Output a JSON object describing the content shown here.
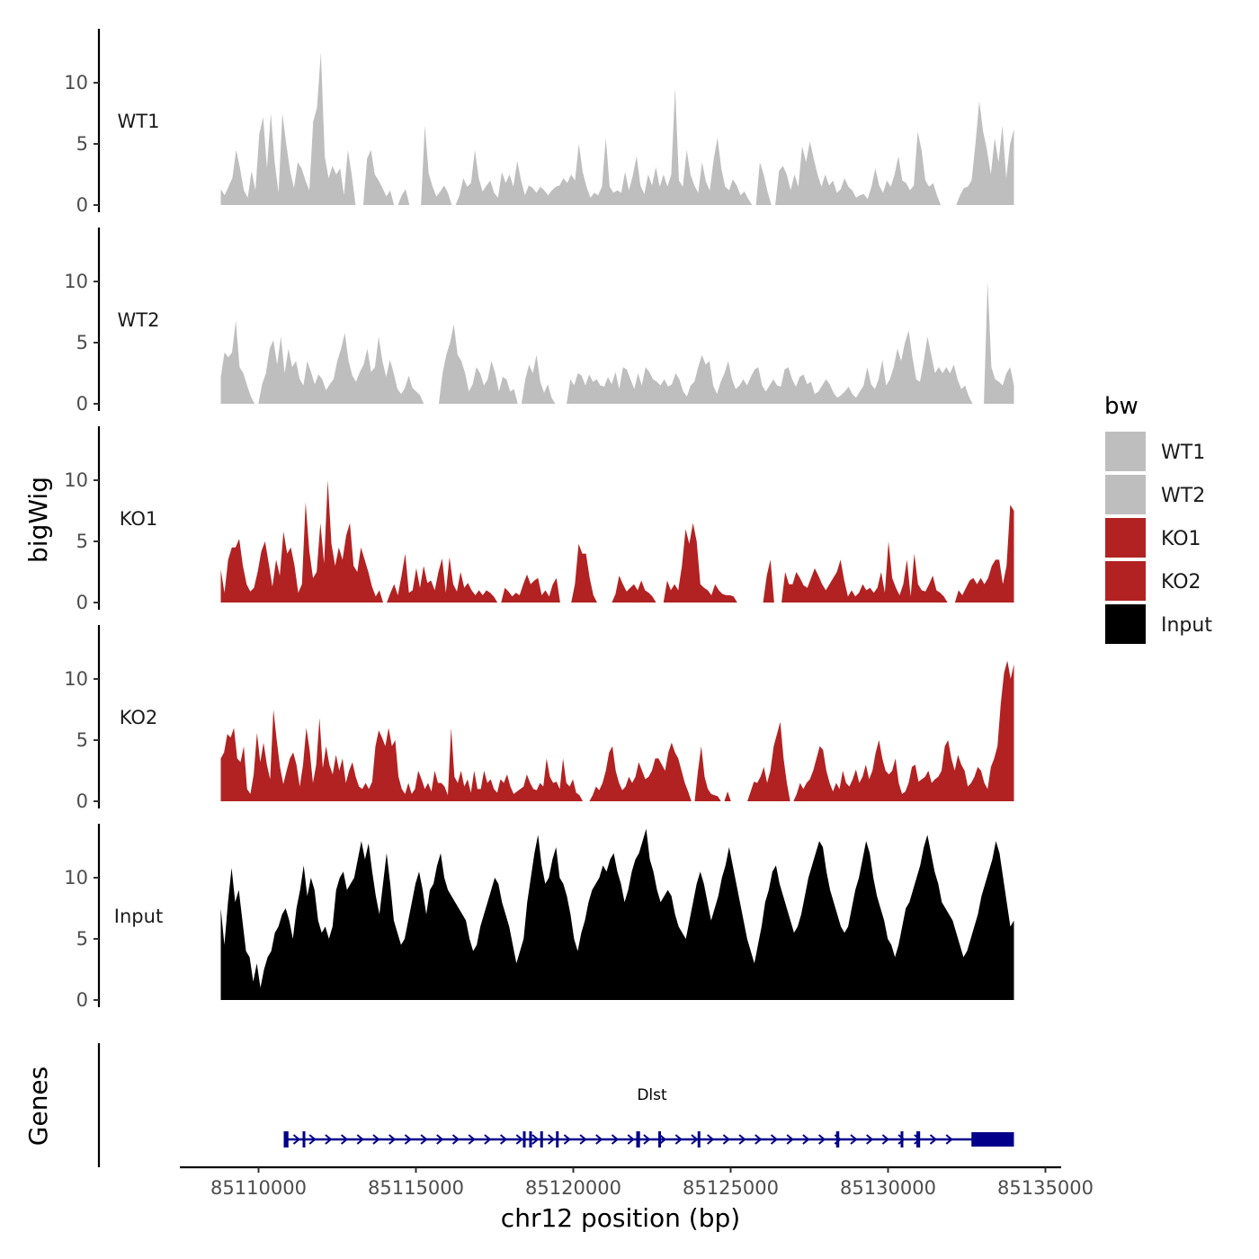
{
  "chart_data": {
    "type": "area",
    "title": "",
    "xlabel": "chr12 position (bp)",
    "ylabel": "bigWig",
    "genes_label": "Genes",
    "xlim": [
      85107500,
      85135500
    ],
    "x_ticks": [
      85110000,
      85115000,
      85120000,
      85125000,
      85130000,
      85135000
    ],
    "x_tick_labels": [
      "85110000",
      "85115000",
      "85120000",
      "85125000",
      "85130000",
      "85135000"
    ],
    "ylim": [
      0,
      14
    ],
    "y_ticks": [
      0,
      5,
      10
    ],
    "y_tick_labels": [
      "0",
      "5",
      "10"
    ],
    "x_start": 85108800,
    "x_end": 85134000,
    "legend": {
      "title": "bw",
      "entries": [
        {
          "label": "WT1",
          "color": "#bebebe"
        },
        {
          "label": "WT2",
          "color": "#bebebe"
        },
        {
          "label": "KO1",
          "color": "#b22222"
        },
        {
          "label": "KO2",
          "color": "#b22222"
        },
        {
          "label": "Input",
          "color": "#000000"
        }
      ]
    },
    "series": [
      {
        "name": "WT1",
        "color": "#bebebe",
        "values": [
          1.3,
          0.8,
          1.5,
          2.2,
          4.5,
          3.0,
          1.2,
          0.6,
          2.8,
          1.2,
          5.8,
          7.2,
          3.0,
          7.5,
          3.5,
          1.0,
          7.5,
          5.0,
          2.8,
          1.4,
          3.5,
          3.0,
          2.0,
          1.2,
          6.8,
          8.0,
          12.5,
          4.0,
          2.2,
          3.2,
          2.5,
          3.0,
          0.8,
          4.5,
          2.5,
          0,
          0,
          0,
          3.8,
          4.5,
          2.5,
          2.0,
          1.4,
          0.7,
          1.2,
          0,
          0,
          0.8,
          1.3,
          0,
          0,
          0,
          0,
          6.5,
          2.6,
          1.5,
          0.7,
          1.1,
          1.6,
          1.0,
          0,
          0,
          0.8,
          2.2,
          1.5,
          1.8,
          4.5,
          2.2,
          1.1,
          1.6,
          2.0,
          1.0,
          0.6,
          2.7,
          1.8,
          2.5,
          1.5,
          3.6,
          2.0,
          0.8,
          1.6,
          1.4,
          1.0,
          1.5,
          1.2,
          0.8,
          1.2,
          1.5,
          1.6,
          2.2,
          1.8,
          2.5,
          2.0,
          5.0,
          2.7,
          1.5,
          0.6,
          1.0,
          0.8,
          1.5,
          5.5,
          1.5,
          1.0,
          1.2,
          1.0,
          2.7,
          1.2,
          2.4,
          4.0,
          1.6,
          0.9,
          2.5,
          1.6,
          3.1,
          1.5,
          2.5,
          1.5,
          2.5,
          9.6,
          2.0,
          1.5,
          4.5,
          2.5,
          1.6,
          1.0,
          3.5,
          1.9,
          1.2,
          3.7,
          5.5,
          3.0,
          1.5,
          1.2,
          2.1,
          1.6,
          0.8,
          1.1,
          0.5,
          0,
          0,
          3.5,
          2.5,
          1.1,
          0,
          0,
          2.8,
          3.2,
          2.5,
          1.2,
          2.5,
          1.5,
          4.8,
          3.5,
          5.2,
          3.8,
          2.5,
          1.5,
          2.5,
          1.6,
          2.0,
          1.0,
          1.3,
          2.2,
          1.5,
          1.2,
          0.6,
          0.8,
          0.9,
          0.5,
          1.5,
          3.0,
          1.6,
          1.0,
          2.0,
          1.5,
          2.5,
          4.0,
          2.0,
          1.8,
          1.2,
          1.6,
          6.0,
          4.5,
          2.0,
          1.5,
          1.8,
          0.8,
          0,
          0,
          0,
          0,
          0,
          0.8,
          1.4,
          1.5,
          2.0,
          5.0,
          8.5,
          6.0,
          4.5,
          2.5,
          5.5,
          3.5,
          6.5,
          2.2,
          5.0,
          6.2
        ]
      },
      {
        "name": "WT2",
        "color": "#bebebe",
        "values": [
          2.2,
          4.2,
          3.8,
          4.2,
          6.8,
          3.0,
          2.5,
          1.5,
          0.6,
          0,
          0,
          1.6,
          2.5,
          4.5,
          5.2,
          3.2,
          5.5,
          2.5,
          4.5,
          3.0,
          3.5,
          2.0,
          1.5,
          3.5,
          2.6,
          1.6,
          2.4,
          2.0,
          1.1,
          1.6,
          2.0,
          3.5,
          4.5,
          5.8,
          3.5,
          2.3,
          1.8,
          2.6,
          3.2,
          4.5,
          2.6,
          3.0,
          5.5,
          3.5,
          2.2,
          3.6,
          2.5,
          1.2,
          0.8,
          1.3,
          2.3,
          1.3,
          1.0,
          0.7,
          0,
          0,
          0,
          0,
          0,
          2.5,
          4.0,
          5.0,
          6.5,
          4.0,
          3.5,
          2.5,
          1.0,
          1.6,
          3.0,
          2.5,
          1.5,
          2.0,
          3.5,
          2.5,
          1.0,
          2.2,
          2.0,
          1.0,
          1.2,
          0,
          0,
          2.0,
          3.2,
          2.5,
          4.0,
          1.8,
          0.9,
          1.6,
          0.5,
          0,
          0,
          0,
          0,
          2.0,
          1.5,
          2.5,
          2.3,
          1.5,
          2.4,
          1.8,
          2.0,
          1.5,
          1.4,
          2.2,
          1.6,
          2.6,
          1.2,
          3.0,
          2.8,
          2.0,
          1.2,
          2.5,
          1.5,
          3.0,
          2.6,
          2.0,
          1.8,
          1.5,
          2.0,
          1.4,
          1.6,
          2.5,
          2.0,
          1.0,
          0.6,
          1.5,
          1.8,
          3.0,
          4.0,
          3.2,
          3.5,
          1.5,
          0.8,
          1.8,
          2.5,
          3.5,
          2.0,
          1.2,
          1.5,
          2.0,
          1.5,
          2.2,
          2.8,
          3.0,
          1.5,
          1.0,
          1.5,
          2.0,
          1.5,
          1.4,
          2.8,
          3.0,
          2.0,
          1.4,
          2.2,
          2.4,
          1.6,
          1.8,
          0.8,
          1.0,
          1.5,
          2.0,
          1.6,
          0.9,
          0.5,
          0.7,
          1.0,
          1.4,
          0.8,
          0.5,
          1.0,
          1.5,
          3.0,
          1.6,
          1.2,
          2.0,
          3.6,
          1.5,
          2.0,
          3.0,
          4.5,
          3.5,
          5.0,
          6.0,
          3.8,
          2.0,
          1.8,
          3.5,
          5.5,
          4.0,
          2.5,
          3.0,
          2.5,
          3.0,
          2.5,
          3.2,
          2.0,
          1.2,
          1.5,
          0.6,
          0,
          0,
          0,
          0,
          10.0,
          3.0,
          2.0,
          1.8,
          1.5,
          2.5,
          3.0,
          1.5
        ]
      },
      {
        "name": "KO1",
        "color": "#b22222",
        "values": [
          2.7,
          0.8,
          3.5,
          4.5,
          4.5,
          5.2,
          3.0,
          1.5,
          0.9,
          1.2,
          2.5,
          4.2,
          5.0,
          3.2,
          1.3,
          3.5,
          2.2,
          5.8,
          4.0,
          4.5,
          3.0,
          0.8,
          1.5,
          8.2,
          4.2,
          2.0,
          2.5,
          6.5,
          3.2,
          10.0,
          4.8,
          3.0,
          4.5,
          3.5,
          5.5,
          6.5,
          3.0,
          2.5,
          4.5,
          3.5,
          2.5,
          1.3,
          0.5,
          1.0,
          0,
          0,
          0.8,
          1.5,
          0.6,
          2.2,
          4.0,
          0.8,
          1.0,
          2.8,
          1.2,
          3.0,
          1.6,
          1.8,
          1.0,
          2.5,
          3.6,
          0.8,
          3.7,
          1.5,
          0.9,
          2.5,
          1.2,
          1.6,
          1.0,
          0.6,
          1.0,
          0.6,
          1.0,
          0.8,
          0.5,
          0,
          0,
          1.2,
          0.9,
          0.5,
          0.8,
          0.6,
          1.5,
          2.3,
          1.5,
          1.8,
          2.0,
          0.6,
          1.0,
          0.5,
          1.5,
          2.0,
          0,
          0,
          0,
          0,
          1.5,
          4.8,
          4.0,
          4.0,
          2.0,
          0.6,
          0,
          0,
          0,
          0,
          0,
          0.7,
          2.2,
          1.5,
          0.9,
          1.2,
          1.5,
          1.0,
          1.8,
          1.0,
          0.8,
          0.5,
          0,
          0,
          0,
          1.8,
          1.0,
          1.5,
          1.0,
          3.0,
          6.0,
          4.8,
          6.5,
          5.0,
          1.5,
          1.2,
          1.0,
          0.6,
          1.5,
          1.0,
          0.7,
          0.6,
          0.6,
          0.5,
          0,
          0,
          0,
          0,
          0,
          0,
          0,
          0,
          2.2,
          3.5,
          0,
          0,
          0,
          2.5,
          1.5,
          1.5,
          2.5,
          2.0,
          1.4,
          1.2,
          2.0,
          2.8,
          2.2,
          1.5,
          1.0,
          1.5,
          2.0,
          2.5,
          3.5,
          1.8,
          0.5,
          1.0,
          0.5,
          0.8,
          1.5,
          1.0,
          1.2,
          0.8,
          1.2,
          2.5,
          0.8,
          5.0,
          2.0,
          1.2,
          0.6,
          1.5,
          3.5,
          0.5,
          4.0,
          1.5,
          1.0,
          0.9,
          1.5,
          2.2,
          1.0,
          0.8,
          0.5,
          0,
          0,
          0,
          1.0,
          0.6,
          1.2,
          1.8,
          2.0,
          1.5,
          2.0,
          1.5,
          2.0,
          3.0,
          3.5,
          3.5,
          1.5,
          3.0,
          8.0,
          7.5
        ]
      },
      {
        "name": "KO2",
        "color": "#b22222",
        "values": [
          3.5,
          4.0,
          5.5,
          5.2,
          6.0,
          3.5,
          3.2,
          4.5,
          1.0,
          0.6,
          2.2,
          5.6,
          3.2,
          4.8,
          3.0,
          1.8,
          7.5,
          5.0,
          2.8,
          1.4,
          2.5,
          3.5,
          4.0,
          3.0,
          1.2,
          3.0,
          6.0,
          4.2,
          1.5,
          3.0,
          6.8,
          2.7,
          4.5,
          3.0,
          2.2,
          3.8,
          2.5,
          3.5,
          1.5,
          2.5,
          3.2,
          2.0,
          1.2,
          1.0,
          1.5,
          1.0,
          1.6,
          4.5,
          5.8,
          5.2,
          4.5,
          6.0,
          4.5,
          5.0,
          2.0,
          1.0,
          0.6,
          1.5,
          0.6,
          1.0,
          2.5,
          1.8,
          1.0,
          1.5,
          0.8,
          2.5,
          1.5,
          1.5,
          1.2,
          0.5,
          6.0,
          2.0,
          1.5,
          2.5,
          1.2,
          1.8,
          0.7,
          2.5,
          1.0,
          1.0,
          2.5,
          1.5,
          1.8,
          1.0,
          0.7,
          1.8,
          1.5,
          2.2,
          1.2,
          0.6,
          0.8,
          1.0,
          1.2,
          2.2,
          1.5,
          1.0,
          0.9,
          1.5,
          1.2,
          3.5,
          2.0,
          1.5,
          1.6,
          1.0,
          3.5,
          1.5,
          1.2,
          1.8,
          0.7,
          0.5,
          0,
          0,
          0,
          0.5,
          1.2,
          0.9,
          1.5,
          2.5,
          4.0,
          4.5,
          2.5,
          1.5,
          0.9,
          1.2,
          2.0,
          1.5,
          2.0,
          3.2,
          2.5,
          1.8,
          2.0,
          2.5,
          3.5,
          3.5,
          3.0,
          2.5,
          4.0,
          4.8,
          4.0,
          3.5,
          2.5,
          1.5,
          0.8,
          0,
          0,
          2.5,
          4.5,
          2.0,
          1.0,
          0.6,
          0.5,
          0.4,
          0,
          0,
          0.8,
          0,
          0,
          0,
          0,
          0,
          0,
          0.8,
          1.6,
          1.5,
          2.0,
          2.8,
          1.5,
          2.5,
          4.5,
          5.5,
          6.5,
          3.5,
          1.5,
          0,
          0,
          0.6,
          1.5,
          1.0,
          1.5,
          1.8,
          2.5,
          3.5,
          4.5,
          4.2,
          2.5,
          1.5,
          0.8,
          1.5,
          1.0,
          2.5,
          1.5,
          1.2,
          1.8,
          2.6,
          1.5,
          2.0,
          3.0,
          1.8,
          2.5,
          4.0,
          5.0,
          3.5,
          2.5,
          2.2,
          2.5,
          3.5,
          1.5,
          0.6,
          0.8,
          1.5,
          2.8,
          3.0,
          1.6,
          1.8,
          2.0,
          2.5,
          1.5,
          1.8,
          2.0,
          2.5,
          4.5,
          5.0,
          3.5,
          2.5,
          3.8,
          3.0,
          2.5,
          1.2,
          1.5,
          2.0,
          2.8,
          2.5,
          1.5,
          1.0,
          2.8,
          3.5,
          4.5,
          8.0,
          10.5,
          11.5,
          10.0,
          11.2
        ]
      },
      {
        "name": "Input",
        "color": "#000000",
        "values": [
          7.5,
          4.5,
          8.0,
          10.8,
          8.0,
          9.0,
          6.5,
          4.0,
          3.5,
          1.5,
          3.0,
          1.0,
          2.5,
          3.5,
          4.0,
          5.5,
          6.0,
          7.0,
          7.5,
          6.5,
          5.0,
          7.5,
          9.0,
          11.0,
          8.5,
          10.0,
          9.0,
          6.5,
          5.5,
          6.0,
          5.0,
          6.0,
          9.0,
          10.0,
          10.5,
          9.0,
          9.5,
          10.0,
          11.5,
          13.0,
          11.5,
          12.8,
          10.5,
          8.5,
          7.0,
          9.5,
          12.0,
          9.5,
          6.5,
          5.5,
          4.5,
          5.0,
          6.5,
          8.0,
          9.5,
          10.5,
          9.0,
          7.0,
          9.0,
          9.5,
          11.0,
          12.0,
          10.0,
          9.0,
          8.5,
          8.0,
          7.5,
          7.0,
          6.5,
          5.0,
          4.0,
          4.5,
          6.0,
          7.0,
          8.0,
          9.0,
          10.0,
          9.5,
          8.0,
          7.0,
          6.0,
          4.5,
          3.0,
          4.0,
          5.0,
          8.0,
          10.0,
          12.0,
          13.5,
          11.0,
          9.5,
          10.0,
          11.5,
          12.5,
          10.0,
          9.5,
          8.5,
          7.0,
          5.0,
          4.0,
          5.5,
          6.5,
          8.0,
          9.0,
          9.5,
          10.0,
          11.0,
          10.5,
          11.5,
          12.0,
          10.5,
          9.5,
          8.0,
          9.0,
          10.5,
          11.5,
          12.0,
          13.0,
          14.0,
          11.5,
          10.5,
          9.0,
          8.0,
          8.5,
          9.0,
          8.5,
          7.0,
          6.0,
          5.5,
          5.0,
          6.5,
          8.0,
          9.5,
          10.5,
          9.5,
          8.0,
          6.5,
          7.5,
          8.5,
          10.0,
          11.0,
          12.5,
          11.0,
          9.5,
          8.0,
          6.5,
          5.0,
          4.0,
          3.0,
          4.5,
          6.0,
          8.0,
          9.0,
          10.5,
          11.0,
          9.5,
          8.5,
          7.5,
          6.5,
          5.5,
          6.0,
          7.0,
          8.5,
          10.0,
          11.0,
          12.0,
          13.0,
          12.5,
          10.5,
          9.0,
          8.0,
          7.0,
          6.0,
          5.5,
          6.0,
          7.5,
          9.0,
          10.0,
          11.5,
          13.0,
          12.0,
          10.0,
          8.5,
          7.5,
          6.5,
          5.0,
          4.5,
          3.5,
          4.5,
          6.0,
          7.5,
          8.0,
          9.0,
          10.0,
          11.0,
          12.5,
          13.5,
          12.0,
          10.5,
          9.5,
          8.0,
          7.5,
          7.0,
          6.5,
          5.5,
          4.5,
          3.5,
          4.0,
          5.0,
          6.0,
          7.0,
          8.5,
          9.5,
          10.5,
          11.5,
          13.0,
          12.0,
          10.0,
          8.0,
          6.0,
          6.5
        ]
      }
    ],
    "gene": {
      "name": "Dlst",
      "start": 85110800,
      "end": 85134000,
      "strand": "+",
      "color": "#00008b",
      "exons": [
        {
          "start": 85110800,
          "end": 85110950
        },
        {
          "start": 85111400,
          "end": 85111470
        },
        {
          "start": 85118400,
          "end": 85118470
        },
        {
          "start": 85118600,
          "end": 85118680
        },
        {
          "start": 85118950,
          "end": 85119020
        },
        {
          "start": 85119450,
          "end": 85119530
        },
        {
          "start": 85122000,
          "end": 85122120
        },
        {
          "start": 85122700,
          "end": 85122770
        },
        {
          "start": 85123950,
          "end": 85124030
        },
        {
          "start": 85128350,
          "end": 85128450
        },
        {
          "start": 85130400,
          "end": 85130480
        },
        {
          "start": 85130900,
          "end": 85131020
        },
        {
          "start": 85132650,
          "end": 85134000
        }
      ]
    }
  }
}
